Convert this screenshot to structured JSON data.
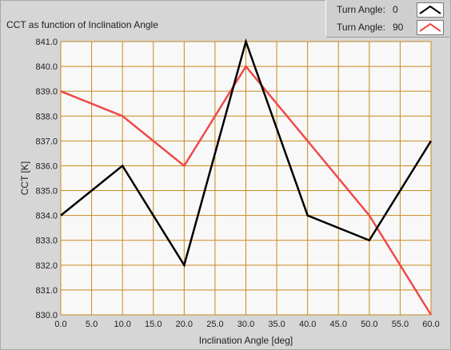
{
  "chart_data": {
    "type": "line",
    "title": "CCT as function of Inclination Angle",
    "xlabel": "Inclination Angle [deg]",
    "ylabel": "CCT [K]",
    "xlim": [
      0,
      60
    ],
    "ylim": [
      830,
      841
    ],
    "x_ticks": [
      "0.0",
      "5.0",
      "10.0",
      "15.0",
      "20.0",
      "25.0",
      "30.0",
      "35.0",
      "40.0",
      "45.0",
      "50.0",
      "55.0",
      "60.0"
    ],
    "y_ticks": [
      "830.0",
      "831.0",
      "832.0",
      "833.0",
      "834.0",
      "835.0",
      "836.0",
      "837.0",
      "838.0",
      "839.0",
      "840.0",
      "841.0"
    ],
    "grid": true,
    "x": [
      0,
      10,
      20,
      30,
      40,
      50,
      60
    ],
    "series": [
      {
        "legend_label": "Turn Angle:",
        "legend_value": "0",
        "color": "#000000",
        "values": [
          834,
          836,
          832,
          841,
          834,
          833,
          837
        ]
      },
      {
        "legend_label": "Turn Angle:",
        "legend_value": "90",
        "color": "#ef4a4a",
        "values": [
          839,
          838,
          836,
          840,
          837,
          834,
          830
        ]
      }
    ]
  },
  "colors": {
    "plot_bg": "#f8f8f8",
    "grid": "#c98a1e",
    "frame_bg": "#d6d6d6"
  }
}
